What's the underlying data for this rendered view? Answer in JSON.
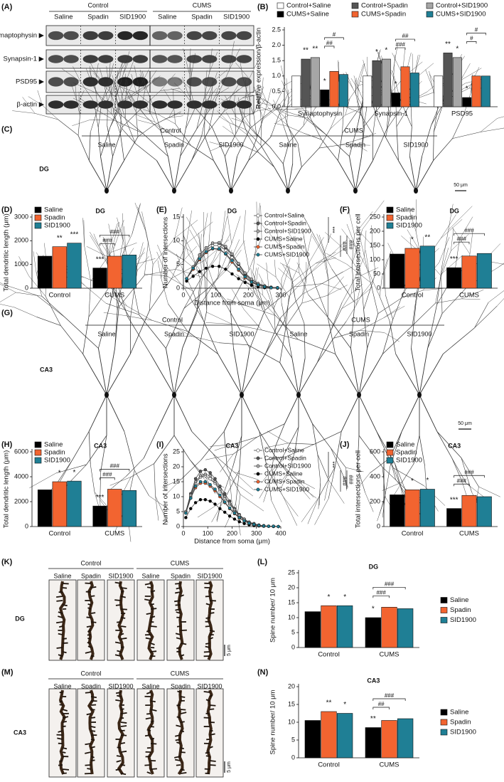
{
  "blots": {
    "panel": "(A)",
    "groups": [
      "Control",
      "CUMS"
    ],
    "lanes": [
      "Saline",
      "Spadin",
      "SID1900",
      "Saline",
      "Spadin",
      "SID1900"
    ],
    "proteins": [
      "Synaptophysin ▶",
      "Synapsin-1 ▶",
      "PSD95 ▶",
      "β-actin ▶"
    ]
  },
  "morphology": [
    {
      "panel": "(C)",
      "groups": [
        "Control",
        "CUMS"
      ],
      "conditions": [
        "Saline",
        "Spadin",
        "SID1900",
        "Saline",
        "Spadin",
        "SID1900"
      ],
      "region": "DG",
      "scale": "50 μm"
    },
    {
      "panel": "(G)",
      "groups": [
        "Control",
        "CUMS"
      ],
      "conditions": [
        "Saline",
        "Spadin",
        "SID1900",
        "Saline",
        "Spadin",
        "SID1900"
      ],
      "region": "CA3",
      "scale": "50 μm"
    },
    {
      "panel": "(K)",
      "groups": [
        "Control",
        "CUMS"
      ],
      "conditions": [
        "Saline",
        "Spadin",
        "SID1900",
        "Saline",
        "Spadin",
        "SID1900"
      ],
      "region": "DG",
      "scale": "5 μm"
    },
    {
      "panel": "(M)",
      "groups": [
        "Control",
        "CUMS"
      ],
      "conditions": [
        "Saline",
        "Spadin",
        "SID1900",
        "Saline",
        "Spadin",
        "SID1900"
      ],
      "region": "CA3",
      "scale": "5 μm"
    }
  ],
  "chart_data": [
    {
      "type": "bar",
      "panel": "(B)",
      "ylabel": "Relative expression/β-actin",
      "categories": [
        "Synaptophysin",
        "Synapsin-1",
        "PSD95"
      ],
      "series": [
        {
          "name": "Control+Saline",
          "color": "#ffffff",
          "values": [
            1.0,
            1.0,
            1.0
          ]
        },
        {
          "name": "Control+Spadin",
          "color": "#555555",
          "values": [
            1.55,
            1.5,
            1.75
          ]
        },
        {
          "name": "Control+SID1900",
          "color": "#a6a6a6",
          "values": [
            1.6,
            1.55,
            1.6
          ]
        },
        {
          "name": "CUMS+Saline",
          "color": "#000000",
          "values": [
            0.55,
            0.45,
            0.3
          ]
        },
        {
          "name": "CUMS+Spadin",
          "color": "#f26430",
          "values": [
            1.15,
            1.3,
            1.0
          ]
        },
        {
          "name": "CUMS+SID1900",
          "color": "#1f7f95",
          "values": [
            1.05,
            1.1,
            1.0
          ]
        }
      ],
      "ylim": [
        0,
        2.5
      ],
      "yticks": [
        {
          "value": 0,
          "label": "0.0"
        },
        0.5,
        {
          "value": 1,
          "label": "1.0"
        },
        1.5,
        {
          "value": 2,
          "label": "2.0"
        },
        2.5
      ],
      "legend": "top",
      "annotations": [
        {
          "text": "**",
          "category": 0,
          "series": 1
        },
        {
          "text": "**",
          "category": 0,
          "series": 2
        },
        {
          "text": "*",
          "category": 0,
          "series": 3
        },
        {
          "text": "##",
          "category": 0,
          "between": [
            3,
            4
          ]
        },
        {
          "text": "#",
          "category": 0,
          "between": [
            3,
            5
          ]
        },
        {
          "text": "*",
          "category": 1,
          "series": 1
        },
        {
          "text": "*",
          "category": 1,
          "series": 2
        },
        {
          "text": "*",
          "category": 1,
          "series": 3
        },
        {
          "text": "###",
          "category": 1,
          "between": [
            3,
            4
          ]
        },
        {
          "text": "##",
          "category": 1,
          "between": [
            3,
            5
          ]
        },
        {
          "text": "**",
          "category": 2,
          "series": 1
        },
        {
          "text": "*",
          "category": 2,
          "series": 2
        },
        {
          "text": "*",
          "category": 2,
          "series": 3
        },
        {
          "text": "#",
          "category": 2,
          "between": [
            3,
            4
          ]
        },
        {
          "text": "#",
          "category": 2,
          "between": [
            3,
            5
          ]
        }
      ]
    },
    {
      "type": "bar",
      "panel": "(D)",
      "title": "DG",
      "ylabel": "Total dendritic length (μm)",
      "categories": [
        "Control",
        "CUMS"
      ],
      "series": [
        {
          "name": "Saline",
          "color": "#000000",
          "values": [
            1350,
            850
          ]
        },
        {
          "name": "Spadin",
          "color": "#f26430",
          "values": [
            1750,
            1350
          ]
        },
        {
          "name": "SID1900",
          "color": "#1f7f95",
          "values": [
            1900,
            1400
          ]
        }
      ],
      "ylim": [
        0,
        3000
      ],
      "yticks": [
        0,
        1000,
        2000,
        3000
      ],
      "legend": "top-left",
      "annotations": [
        {
          "text": "**",
          "category": 0,
          "series": 1
        },
        {
          "text": "***",
          "category": 0,
          "series": 2
        },
        {
          "text": "***",
          "category": 1,
          "series": 0
        },
        {
          "text": "###",
          "category": 1,
          "between": [
            0,
            1
          ]
        },
        {
          "text": "###",
          "category": 1,
          "between": [
            0,
            2
          ]
        }
      ]
    },
    {
      "type": "line",
      "panel": "(E)",
      "title": "DG",
      "xlabel": "Distance from soma (μm)",
      "ylabel": "Number of intersections",
      "x": [
        10,
        30,
        50,
        70,
        90,
        110,
        130,
        150,
        170,
        190,
        210,
        230,
        250,
        270,
        290
      ],
      "series": [
        {
          "name": "Control+Saline",
          "color": "#ffffff",
          "values": [
            2,
            4,
            6.5,
            8,
            9,
            9,
            8,
            6.5,
            4.5,
            2.8,
            1.5,
            0.8,
            0.4,
            0.2,
            0.1
          ]
        },
        {
          "name": "Control+Spadin",
          "color": "#555555",
          "values": [
            2,
            4.5,
            7,
            8.5,
            9.5,
            9.5,
            8.5,
            7,
            5,
            3,
            1.8,
            1,
            0.5,
            0.2,
            0.1
          ]
        },
        {
          "name": "Control+SID1900",
          "color": "#a6a6a6",
          "values": [
            2,
            4.5,
            7,
            8.5,
            9.5,
            9.6,
            8.8,
            7.2,
            5.2,
            3.2,
            1.9,
            1,
            0.5,
            0.2,
            0.1
          ]
        },
        {
          "name": "CUMS+Saline",
          "color": "#000000",
          "values": [
            1.5,
            2.5,
            3.5,
            4.2,
            4.6,
            4.6,
            4,
            3,
            2,
            1.2,
            0.6,
            0.3,
            0.1,
            0.1,
            0
          ]
        },
        {
          "name": "CUMS+Spadin",
          "color": "#f26430",
          "values": [
            2,
            4,
            6,
            7.5,
            8.3,
            8.2,
            7.2,
            5.5,
            3.8,
            2.2,
            1.2,
            0.6,
            0.3,
            0.1,
            0.1
          ]
        },
        {
          "name": "CUMS+SID1900",
          "color": "#1f7f95",
          "values": [
            2,
            4.2,
            6.2,
            7.7,
            8.4,
            8.3,
            7.3,
            5.8,
            4,
            2.4,
            1.3,
            0.7,
            0.3,
            0.1,
            0.1
          ]
        }
      ],
      "xlim": [
        0,
        300
      ],
      "xticks": [
        0,
        100,
        200,
        300
      ],
      "ylim": [
        0,
        15
      ],
      "yticks": [
        0,
        5,
        10,
        15
      ],
      "legend": "top-right",
      "annotations": [
        "***",
        "###",
        "###"
      ]
    },
    {
      "type": "bar",
      "panel": "(F)",
      "title": "DG",
      "ylabel": "Total intersections per cell",
      "categories": [
        "Control",
        "CUMS"
      ],
      "series": [
        {
          "name": "Saline",
          "color": "#000000",
          "values": [
            120,
            72
          ]
        },
        {
          "name": "Spadin",
          "color": "#f26430",
          "values": [
            140,
            113
          ]
        },
        {
          "name": "SID1900",
          "color": "#1f7f95",
          "values": [
            148,
            122
          ]
        }
      ],
      "ylim": [
        0,
        250
      ],
      "yticks": [
        0,
        50,
        100,
        150,
        200,
        250
      ],
      "legend": "top-left",
      "annotations": [
        {
          "text": "*",
          "category": 0,
          "series": 1
        },
        {
          "text": "**",
          "category": 0,
          "series": 2
        },
        {
          "text": "***",
          "category": 1,
          "series": 0
        },
        {
          "text": "###",
          "category": 1,
          "between": [
            0,
            1
          ]
        },
        {
          "text": "###",
          "category": 1,
          "between": [
            0,
            2
          ]
        }
      ]
    },
    {
      "type": "bar",
      "panel": "(H)",
      "title": "CA3",
      "ylabel": "Total dendritic length (μm)",
      "categories": [
        "Control",
        "CUMS"
      ],
      "series": [
        {
          "name": "Saline",
          "color": "#000000",
          "values": [
            2950,
            1650
          ]
        },
        {
          "name": "Spadin",
          "color": "#f26430",
          "values": [
            3600,
            3000
          ]
        },
        {
          "name": "SID1900",
          "color": "#1f7f95",
          "values": [
            3650,
            2900
          ]
        }
      ],
      "ylim": [
        0,
        6000
      ],
      "yticks": [
        0,
        2000,
        4000,
        6000
      ],
      "legend": "top-left",
      "annotations": [
        {
          "text": "*",
          "category": 0,
          "series": 1
        },
        {
          "text": "*",
          "category": 0,
          "series": 2
        },
        {
          "text": "***",
          "category": 1,
          "series": 0
        },
        {
          "text": "###",
          "category": 1,
          "between": [
            0,
            1
          ]
        },
        {
          "text": "###",
          "category": 1,
          "between": [
            0,
            2
          ]
        }
      ]
    },
    {
      "type": "line",
      "panel": "(I)",
      "title": "CA3",
      "xlabel": "Distance from soma (μm)",
      "ylabel": "Number of intersections",
      "x": [
        10,
        30,
        50,
        70,
        90,
        110,
        130,
        150,
        170,
        190,
        210,
        230,
        250,
        270,
        290,
        310,
        330,
        350,
        370,
        390
      ],
      "series": [
        {
          "name": "Control+Saline",
          "color": "#ffffff",
          "values": [
            5,
            10,
            14.5,
            16.5,
            17,
            16,
            14.5,
            12,
            9.5,
            7.5,
            5.5,
            3.5,
            2.2,
            1.3,
            0.8,
            0.4,
            0.2,
            0.1,
            0.1,
            0
          ]
        },
        {
          "name": "Control+Spadin",
          "color": "#555555",
          "values": [
            5,
            11,
            16,
            18.5,
            19,
            18,
            16,
            13.5,
            11,
            8.5,
            6,
            4,
            2.5,
            1.5,
            1,
            0.5,
            0.3,
            0.1,
            0.1,
            0
          ]
        },
        {
          "name": "Control+SID1900",
          "color": "#a6a6a6",
          "values": [
            5,
            10.5,
            15,
            17,
            17.5,
            17,
            15,
            12.5,
            10,
            7.8,
            5.7,
            3.8,
            2.4,
            1.4,
            0.9,
            0.5,
            0.3,
            0.1,
            0.1,
            0
          ]
        },
        {
          "name": "CUMS+Saline",
          "color": "#000000",
          "values": [
            3,
            6,
            8,
            9,
            9,
            8.5,
            7.5,
            6,
            4.8,
            3.5,
            2.5,
            1.6,
            1,
            0.6,
            0.3,
            0.2,
            0.1,
            0.1,
            0,
            0
          ]
        },
        {
          "name": "CUMS+Spadin",
          "color": "#f26430",
          "values": [
            4.5,
            9.5,
            13,
            14.5,
            14.5,
            13.5,
            12,
            10,
            8,
            6,
            4.3,
            2.8,
            1.8,
            1,
            0.6,
            0.3,
            0.2,
            0.1,
            0.1,
            0
          ]
        },
        {
          "name": "CUMS+SID1900",
          "color": "#1f7f95",
          "values": [
            4.5,
            9.5,
            13.5,
            15,
            15,
            14,
            12.5,
            10.5,
            8.2,
            6.2,
            4.5,
            3,
            1.9,
            1.1,
            0.7,
            0.4,
            0.2,
            0.1,
            0.1,
            0
          ]
        }
      ],
      "xlim": [
        0,
        400
      ],
      "xticks": [
        0,
        100,
        200,
        300,
        400
      ],
      "ylim": [
        0,
        25
      ],
      "yticks": [
        0,
        5,
        10,
        15,
        20,
        25
      ],
      "legend": "top-right",
      "annotations": [
        "***",
        "###",
        "###"
      ]
    },
    {
      "type": "bar",
      "panel": "(J)",
      "title": "CA3",
      "ylabel": "Total intersections per cell",
      "categories": [
        "Control",
        "CUMS"
      ],
      "series": [
        {
          "name": "Saline",
          "color": "#000000",
          "values": [
            255,
            145
          ]
        },
        {
          "name": "Spadin",
          "color": "#f26430",
          "values": [
            295,
            250
          ]
        },
        {
          "name": "SID1900",
          "color": "#1f7f95",
          "values": [
            300,
            240
          ]
        }
      ],
      "ylim": [
        0,
        600
      ],
      "yticks": [
        0,
        200,
        400,
        600
      ],
      "legend": "top-left",
      "annotations": [
        {
          "text": "*",
          "category": 0,
          "series": 1
        },
        {
          "text": "*",
          "category": 0,
          "series": 2
        },
        {
          "text": "***",
          "category": 1,
          "series": 0
        },
        {
          "text": "###",
          "category": 1,
          "between": [
            0,
            1
          ]
        },
        {
          "text": "###",
          "category": 1,
          "between": [
            0,
            2
          ]
        }
      ]
    },
    {
      "type": "bar",
      "panel": "(L)",
      "title": "DG",
      "ylabel": "Spine number/ 10 μm",
      "categories": [
        "Control",
        "CUMS"
      ],
      "series": [
        {
          "name": "Saline",
          "color": "#000000",
          "values": [
            12,
            10
          ]
        },
        {
          "name": "Spadin",
          "color": "#f26430",
          "values": [
            14,
            13.5
          ]
        },
        {
          "name": "SID1900",
          "color": "#1f7f95",
          "values": [
            14,
            13
          ]
        }
      ],
      "ylim": [
        0,
        25
      ],
      "yticks": [
        0,
        5,
        10,
        15,
        20,
        25
      ],
      "legend": "right",
      "annotations": [
        {
          "text": "*",
          "category": 0,
          "series": 1
        },
        {
          "text": "*",
          "category": 0,
          "series": 2
        },
        {
          "text": "*",
          "category": 1,
          "series": 0
        },
        {
          "text": "###",
          "category": 1,
          "between": [
            0,
            1
          ]
        },
        {
          "text": "###",
          "category": 1,
          "between": [
            0,
            2
          ]
        }
      ]
    },
    {
      "type": "bar",
      "panel": "(N)",
      "title": "CA3",
      "ylabel": "Spine number/ 10 μm",
      "categories": [
        "Control",
        "CUMS"
      ],
      "series": [
        {
          "name": "Saline",
          "color": "#000000",
          "values": [
            10.5,
            8.5
          ]
        },
        {
          "name": "Spadin",
          "color": "#f26430",
          "values": [
            13,
            10.5
          ]
        },
        {
          "name": "SID1900",
          "color": "#1f7f95",
          "values": [
            12.5,
            11
          ]
        }
      ],
      "ylim": [
        0,
        20
      ],
      "yticks": [
        0,
        5,
        10,
        15,
        20
      ],
      "legend": "right",
      "annotations": [
        {
          "text": "**",
          "category": 0,
          "series": 1
        },
        {
          "text": "*",
          "category": 0,
          "series": 2
        },
        {
          "text": "**",
          "category": 1,
          "series": 0
        },
        {
          "text": "##",
          "category": 1,
          "between": [
            0,
            1
          ]
        },
        {
          "text": "###",
          "category": 1,
          "between": [
            0,
            2
          ]
        }
      ]
    }
  ]
}
